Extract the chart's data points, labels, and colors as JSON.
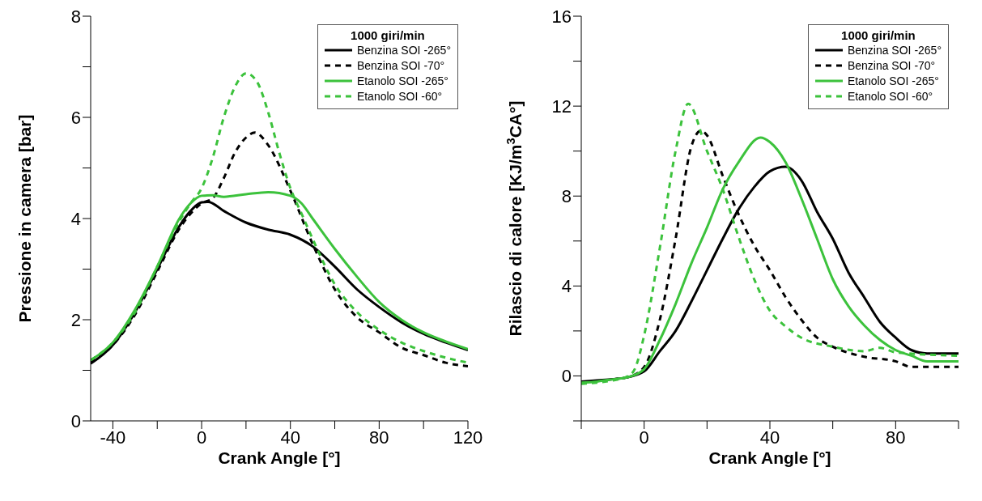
{
  "chart_data": [
    {
      "type": "line",
      "xlabel": "Crank Angle [°]",
      "ylabel": "Pressione in camera [bar]",
      "legend_title": "1000 giri/min",
      "legend": "top right",
      "marker": "none",
      "xlim": [
        -50,
        120
      ],
      "xticks": [
        -40,
        {
          "value": -20,
          "label": null
        },
        0,
        {
          "value": 20,
          "label": null
        },
        40,
        {
          "value": 60,
          "label": null
        },
        80,
        {
          "value": 100,
          "label": null
        },
        120
      ],
      "ylim": [
        0,
        8
      ],
      "yticks": [
        0,
        {
          "value": 1,
          "label": null
        },
        2,
        {
          "value": 3,
          "label": null
        },
        4,
        {
          "value": 5,
          "label": null
        },
        6,
        {
          "value": 7,
          "label": null
        },
        8
      ],
      "series": [
        {
          "name": "Benzina SOI -265°",
          "color": "#000000",
          "line_style": "solid",
          "x": [
            -50,
            -40,
            -30,
            -20,
            -10,
            -5,
            0,
            3,
            10,
            20,
            30,
            40,
            50,
            60,
            70,
            80,
            90,
            100,
            110,
            120
          ],
          "values": [
            1.13,
            1.5,
            2.15,
            3.0,
            3.85,
            4.15,
            4.32,
            4.33,
            4.15,
            3.92,
            3.78,
            3.68,
            3.45,
            3.05,
            2.6,
            2.25,
            1.95,
            1.72,
            1.55,
            1.4
          ]
        },
        {
          "name": "Benzina SOI -70°",
          "color": "#000000",
          "line_style": "dashed",
          "x": [
            -50,
            -40,
            -30,
            -20,
            -10,
            0,
            5,
            10,
            15,
            20,
            24,
            30,
            40,
            50,
            60,
            70,
            80,
            90,
            100,
            110,
            120
          ],
          "values": [
            1.15,
            1.5,
            2.1,
            2.95,
            3.8,
            4.3,
            4.4,
            4.8,
            5.3,
            5.6,
            5.7,
            5.45,
            4.55,
            3.5,
            2.6,
            2.05,
            1.75,
            1.45,
            1.3,
            1.15,
            1.08
          ]
        },
        {
          "name": "Etanolo SOI -265°",
          "color": "#3cc23c",
          "line_style": "solid",
          "x": [
            -50,
            -40,
            -30,
            -20,
            -10,
            -5,
            0,
            5,
            10,
            20,
            30,
            40,
            45,
            50,
            60,
            70,
            80,
            90,
            100,
            110,
            120
          ],
          "values": [
            1.2,
            1.55,
            2.2,
            3.05,
            4.0,
            4.3,
            4.45,
            4.46,
            4.43,
            4.48,
            4.52,
            4.45,
            4.3,
            4.0,
            3.4,
            2.85,
            2.35,
            2.0,
            1.75,
            1.57,
            1.42
          ]
        },
        {
          "name": "Etanolo SOI -60°",
          "color": "#3cc23c",
          "line_style": "dashed",
          "x": [
            -50,
            -40,
            -30,
            -20,
            -10,
            -5,
            0,
            5,
            10,
            15,
            20,
            25,
            30,
            35,
            40,
            45,
            50,
            60,
            70,
            80,
            90,
            100,
            110,
            120
          ],
          "values": [
            1.2,
            1.55,
            2.15,
            3.05,
            3.95,
            4.3,
            4.6,
            5.2,
            6.0,
            6.6,
            6.87,
            6.7,
            6.1,
            5.3,
            4.6,
            4.1,
            3.6,
            2.7,
            2.15,
            1.8,
            1.55,
            1.38,
            1.25,
            1.15
          ]
        }
      ]
    },
    {
      "type": "line",
      "xlabel": "Crank Angle [°]",
      "ylabel": "Rilascio di calore [KJ/m$^{3}$CA°]",
      "legend_title": "1000 giri/min",
      "legend": "top right",
      "marker": "none",
      "xlim": [
        -20,
        100
      ],
      "xticks": [
        {
          "value": -20,
          "label": null
        },
        0,
        {
          "value": 20,
          "label": null
        },
        40,
        {
          "value": 60,
          "label": null
        },
        80,
        {
          "value": 100,
          "label": null
        }
      ],
      "ylim": [
        -2,
        16
      ],
      "yticks": [
        {
          "value": -2,
          "label": null
        },
        0,
        {
          "value": 2,
          "label": null
        },
        4,
        {
          "value": 6,
          "label": null
        },
        8,
        {
          "value": 10,
          "label": null
        },
        12,
        {
          "value": 14,
          "label": null
        },
        16
      ],
      "series": [
        {
          "name": "Benzina SOI -265°",
          "color": "#000000",
          "line_style": "solid",
          "x": [
            -20,
            -15,
            -10,
            -5,
            0,
            5,
            10,
            15,
            20,
            25,
            30,
            35,
            40,
            45,
            50,
            55,
            60,
            65,
            70,
            75,
            80,
            85,
            90,
            100
          ],
          "values": [
            -0.25,
            -0.2,
            -0.15,
            -0.05,
            0.2,
            1.1,
            2.0,
            3.3,
            4.7,
            6.1,
            7.4,
            8.4,
            9.1,
            9.3,
            8.7,
            7.3,
            6.1,
            4.6,
            3.5,
            2.4,
            1.7,
            1.15,
            1.0,
            1.0
          ]
        },
        {
          "name": "Benzina SOI -70°",
          "color": "#000000",
          "line_style": "dashed",
          "x": [
            -20,
            -15,
            -10,
            -5,
            0,
            5,
            10,
            15,
            18,
            20,
            25,
            30,
            35,
            40,
            45,
            50,
            55,
            60,
            70,
            80,
            85,
            100
          ],
          "values": [
            -0.3,
            -0.25,
            -0.15,
            -0.05,
            0.4,
            2.5,
            6.1,
            10.2,
            10.9,
            10.7,
            8.9,
            7.2,
            5.8,
            4.7,
            3.5,
            2.5,
            1.7,
            1.3,
            0.85,
            0.65,
            0.4,
            0.4
          ]
        },
        {
          "name": "Etanolo SOI -265°",
          "color": "#3cc23c",
          "line_style": "solid",
          "x": [
            -20,
            -15,
            -10,
            -5,
            0,
            5,
            10,
            15,
            20,
            25,
            30,
            37,
            40,
            45,
            50,
            55,
            60,
            65,
            70,
            75,
            80,
            85,
            90,
            100
          ],
          "values": [
            -0.3,
            -0.25,
            -0.15,
            -0.05,
            0.3,
            1.6,
            3.2,
            5.0,
            6.6,
            8.3,
            9.5,
            10.6,
            10.4,
            9.5,
            7.9,
            6.1,
            4.3,
            3.1,
            2.25,
            1.6,
            1.15,
            0.9,
            0.65,
            0.65
          ]
        },
        {
          "name": "Etanolo SOI -60°",
          "color": "#3cc23c",
          "line_style": "dashed",
          "x": [
            -20,
            -15,
            -10,
            -5,
            -3,
            0,
            5,
            10,
            14,
            20,
            25,
            30,
            35,
            40,
            45,
            50,
            60,
            70,
            75,
            80,
            100
          ],
          "values": [
            -0.35,
            -0.3,
            -0.2,
            0,
            0.3,
            1.8,
            5.7,
            10.0,
            12.1,
            10.0,
            8.3,
            6.2,
            4.3,
            2.9,
            2.2,
            1.7,
            1.3,
            1.1,
            1.25,
            1.05,
            0.9
          ]
        }
      ]
    }
  ]
}
